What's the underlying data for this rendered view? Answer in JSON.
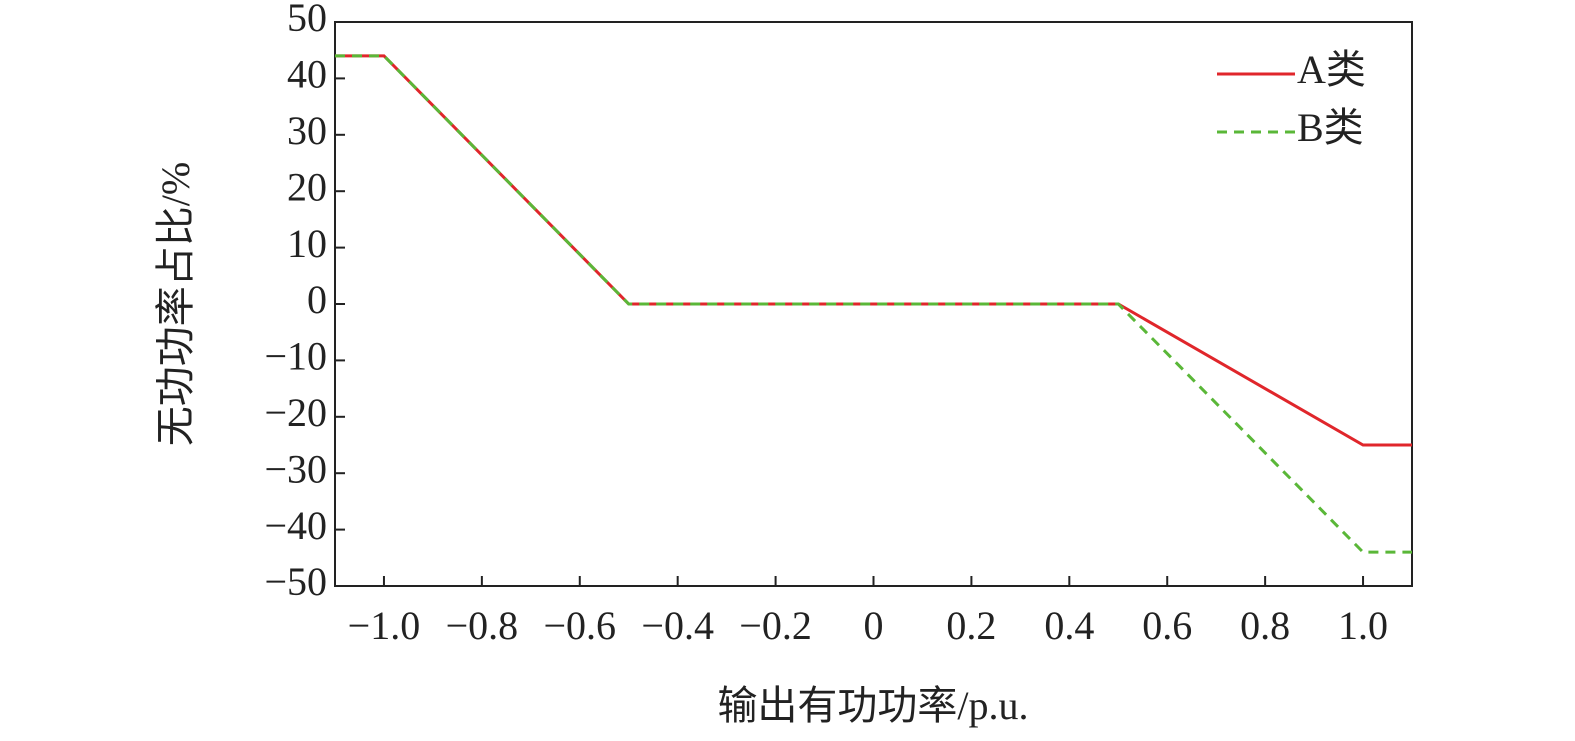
{
  "chart_data": {
    "type": "line",
    "xlabel": "输出有功功率/p.u.",
    "ylabel": "无功功率占比/%",
    "x": [
      -1.1,
      -1.0,
      -0.5,
      0.5,
      1.0,
      1.1
    ],
    "series": [
      {
        "name": "A类",
        "color": "#e0262b",
        "linestyle": "solid",
        "values": [
          44,
          44,
          0,
          0,
          -25,
          -25
        ]
      },
      {
        "name": "B类",
        "color": "#5ab738",
        "linestyle": "dashed",
        "values": [
          44,
          44,
          0,
          0,
          -44,
          -44
        ]
      }
    ],
    "xlim": [
      -1.1,
      1.1
    ],
    "xticks": [
      {
        "value": -1.0,
        "label": "−1.0"
      },
      {
        "value": -0.8,
        "label": "−0.8"
      },
      {
        "value": -0.6,
        "label": "−0.6"
      },
      {
        "value": -0.4,
        "label": "−0.4"
      },
      {
        "value": -0.2,
        "label": "−0.2"
      },
      0,
      0.2,
      0.4,
      0.6,
      0.8,
      {
        "value": 1.0,
        "label": "1.0"
      }
    ],
    "ylim": [
      -50,
      50
    ],
    "yticks": [
      {
        "value": -50,
        "label": "−50"
      },
      {
        "value": -40,
        "label": "−40"
      },
      {
        "value": -30,
        "label": "−30"
      },
      {
        "value": -20,
        "label": "−20"
      },
      {
        "value": -10,
        "label": "−10"
      },
      0,
      10,
      20,
      30,
      40,
      50
    ],
    "grid": false,
    "legend": "upper right"
  }
}
